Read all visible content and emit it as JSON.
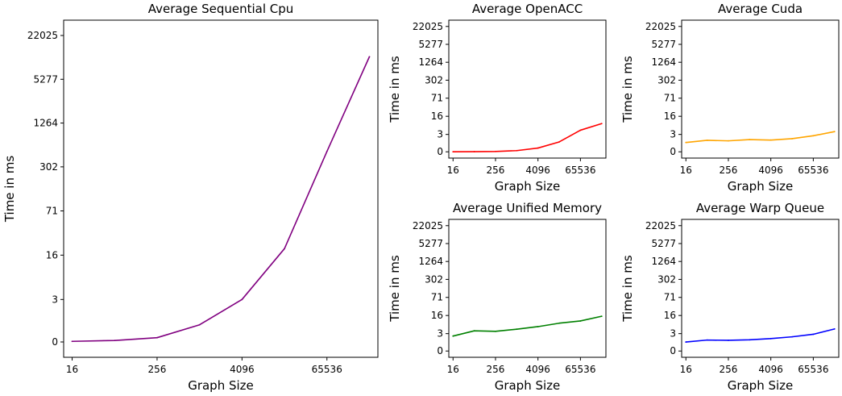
{
  "chart_data": [
    {
      "type": "line",
      "title": "Average Sequential Cpu",
      "xlabel": "Graph Size",
      "ylabel": "Time in ms",
      "x": [
        16,
        64,
        256,
        1024,
        4096,
        16384,
        65536,
        262144
      ],
      "xticks": [
        "16",
        "256",
        "4096",
        "65536"
      ],
      "yticks": [
        "0",
        "3",
        "16",
        "71",
        "302",
        "1264",
        "5277",
        "22025"
      ],
      "series": [
        {
          "color": "#800080",
          "values": [
            0.02,
            0.05,
            0.15,
            0.75,
            3.0,
            20.0,
            500.0,
            11000.0
          ]
        }
      ]
    },
    {
      "type": "line",
      "title": "Average OpenACC",
      "xlabel": "Graph Size",
      "ylabel": "Time in ms",
      "x": [
        16,
        64,
        256,
        1024,
        4096,
        16384,
        65536,
        262144
      ],
      "xticks": [
        "16",
        "256",
        "4096",
        "65536"
      ],
      "yticks": [
        "0",
        "3",
        "16",
        "71",
        "302",
        "1264",
        "5277",
        "22025"
      ],
      "series": [
        {
          "color": "#ff0000",
          "values": [
            0.005,
            0.01,
            0.03,
            0.1,
            0.35,
            1.2,
            4.6,
            8.5
          ]
        }
      ]
    },
    {
      "type": "line",
      "title": "Average Cuda",
      "xlabel": "Graph Size",
      "ylabel": "Time in ms",
      "x": [
        16,
        64,
        256,
        1024,
        4096,
        16384,
        65536,
        262144
      ],
      "xticks": [
        "16",
        "256",
        "4096",
        "65536"
      ],
      "yticks": [
        "0",
        "3",
        "16",
        "71",
        "302",
        "1264",
        "5277",
        "22025"
      ],
      "series": [
        {
          "color": "#ffa500",
          "values": [
            1.1,
            1.5,
            1.4,
            1.65,
            1.55,
            1.85,
            2.6,
            4.0
          ]
        }
      ]
    },
    {
      "type": "line",
      "title": "Average Unified Memory",
      "xlabel": "Graph Size",
      "ylabel": "Time in ms",
      "x": [
        16,
        64,
        256,
        1024,
        4096,
        16384,
        65536,
        262144
      ],
      "xticks": [
        "16",
        "256",
        "4096",
        "65536"
      ],
      "yticks": [
        "0",
        "3",
        "16",
        "71",
        "302",
        "1264",
        "5277",
        "22025"
      ],
      "series": [
        {
          "color": "#008000",
          "values": [
            2.3,
            4.0,
            3.8,
            4.7,
            6.0,
            8.2,
            10.0,
            15.0
          ]
        }
      ]
    },
    {
      "type": "line",
      "title": "Average Warp Queue",
      "xlabel": "Graph Size",
      "ylabel": "Time in ms",
      "x": [
        16,
        64,
        256,
        1024,
        4096,
        16384,
        65536,
        262144
      ],
      "xticks": [
        "16",
        "256",
        "4096",
        "65536"
      ],
      "yticks": [
        "0",
        "3",
        "16",
        "71",
        "302",
        "1264",
        "5277",
        "22025"
      ],
      "series": [
        {
          "color": "#0000ff",
          "values": [
            1.05,
            1.4,
            1.35,
            1.45,
            1.7,
            2.1,
            2.8,
            4.8
          ]
        }
      ]
    }
  ]
}
